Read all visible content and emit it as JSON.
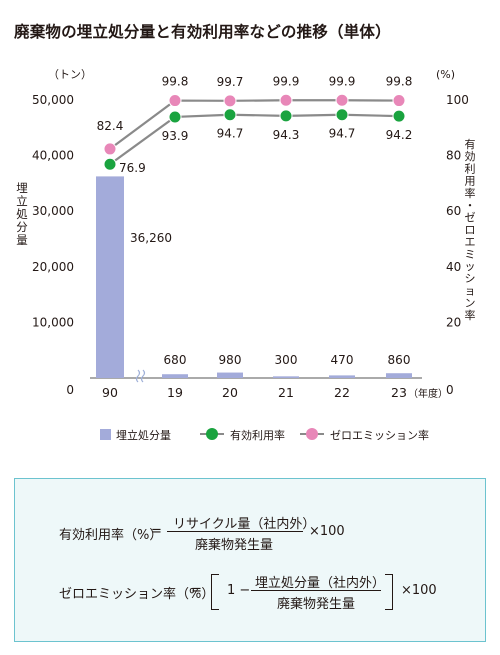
{
  "title": "廃棄物の埋立処分量と有効利用率などの推移（単体）",
  "chart_data": {
    "type": "bar+line",
    "categories": [
      "90",
      "19",
      "20",
      "21",
      "22",
      "23"
    ],
    "x_unit_label": "（年度）",
    "left_axis": {
      "label": "埋立処分量",
      "unit": "（トン）",
      "ticks": [
        "0",
        "10,000",
        "20,000",
        "30,000",
        "40,000",
        "50,000"
      ],
      "range": [
        0,
        50000
      ]
    },
    "right_axis": {
      "label": "有効利用率・ゼロエミッション率",
      "unit": "(%)",
      "ticks": [
        "0",
        "20",
        "40",
        "60",
        "80",
        "100"
      ],
      "range": [
        0,
        100
      ]
    },
    "bars": {
      "name": "埋立処分量",
      "color": "#a3abda",
      "values": [
        36260,
        680,
        980,
        300,
        470,
        860
      ],
      "labels": [
        "36,260",
        "680",
        "980",
        "300",
        "470",
        "860"
      ]
    },
    "series": [
      {
        "name": "有効利用率",
        "color": "#1aa33f",
        "values": [
          76.9,
          93.9,
          94.7,
          94.3,
          94.7,
          94.2
        ],
        "labels": [
          "76.9",
          "93.9",
          "94.7",
          "94.3",
          "94.7",
          "94.2"
        ]
      },
      {
        "name": "ゼロエミッション率",
        "color": "#e887b8",
        "values": [
          82.4,
          99.8,
          99.7,
          99.9,
          99.9,
          99.8
        ],
        "labels": [
          "82.4",
          "99.8",
          "99.7",
          "99.9",
          "99.9",
          "99.8"
        ]
      }
    ],
    "axis_break": "between 90 and 19",
    "legend": "bottom"
  },
  "formulas": {
    "f1_lhs": "有効利用率（%）",
    "eq": "=",
    "f1_num": "リサイクル量（社内外）",
    "f1_den": "廃棄物発生量",
    "times100": "×100",
    "f2_lhs": "ゼロエミッション率（%）",
    "f2_one": "1 −",
    "f2_num": "埋立処分量（社内外）",
    "f2_den": "廃棄物発生量"
  }
}
